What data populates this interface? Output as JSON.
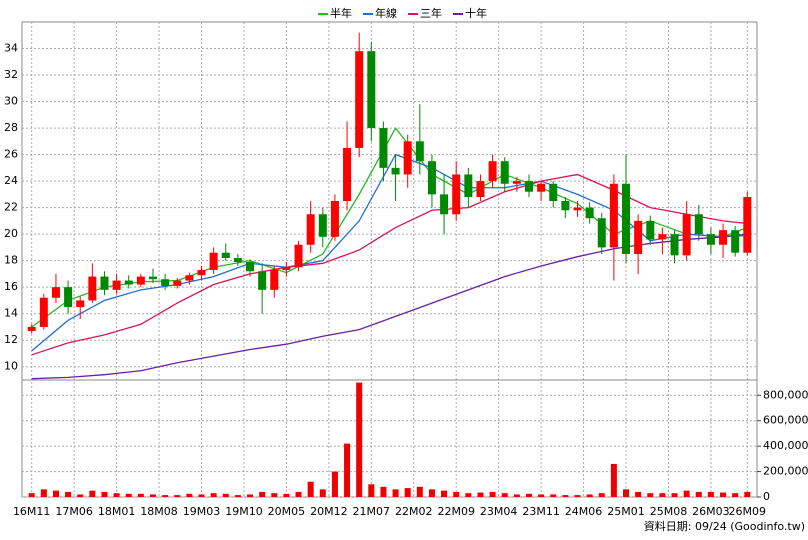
{
  "chart_data": {
    "type": "candlestick",
    "grid": true,
    "legend_position": "top",
    "xlim": [
      -0.8,
      59.8
    ],
    "xticks": [
      {
        "value": 0,
        "label": "16M11"
      },
      {
        "value": 3.5,
        "label": "17M06"
      },
      {
        "value": 7,
        "label": "18M01"
      },
      {
        "value": 10.5,
        "label": "18M08"
      },
      {
        "value": 14,
        "label": "19M03"
      },
      {
        "value": 17.5,
        "label": "19M10"
      },
      {
        "value": 21,
        "label": "20M05"
      },
      {
        "value": 24.5,
        "label": "20M12"
      },
      {
        "value": 28,
        "label": "21M07"
      },
      {
        "value": 31.5,
        "label": "22M02"
      },
      {
        "value": 35,
        "label": "22M09"
      },
      {
        "value": 38.5,
        "label": "23M04"
      },
      {
        "value": 42,
        "label": "23M11"
      },
      {
        "value": 45.5,
        "label": "24M06"
      },
      {
        "value": 49,
        "label": "25M01"
      },
      {
        "value": 52.5,
        "label": "25M08"
      },
      {
        "value": 56,
        "label": "26M03"
      },
      {
        "value": 59,
        "label": "26M09"
      }
    ],
    "ylim": [
      9,
      36
    ],
    "yticks": [
      10,
      12,
      14,
      16,
      18,
      20,
      22,
      24,
      26,
      28,
      30,
      32,
      34
    ],
    "up_color": "#ff0000",
    "down_color": "#008800",
    "ohlc": [
      [
        12.7,
        13.2,
        12.5,
        13.0
      ],
      [
        13.0,
        15.5,
        12.8,
        15.2
      ],
      [
        15.2,
        17.0,
        14.8,
        16.0
      ],
      [
        16.0,
        16.5,
        14.0,
        14.5
      ],
      [
        14.5,
        15.3,
        13.6,
        15.0
      ],
      [
        15.0,
        17.8,
        14.8,
        16.8
      ],
      [
        16.8,
        17.2,
        15.4,
        15.8
      ],
      [
        15.8,
        17.0,
        15.5,
        16.5
      ],
      [
        16.5,
        16.9,
        15.9,
        16.2
      ],
      [
        16.2,
        17.0,
        16.0,
        16.8
      ],
      [
        16.8,
        17.4,
        16.3,
        16.6
      ],
      [
        16.6,
        17.0,
        15.8,
        16.1
      ],
      [
        16.1,
        16.7,
        15.9,
        16.5
      ],
      [
        16.5,
        17.1,
        16.2,
        16.9
      ],
      [
        16.9,
        17.6,
        16.5,
        17.3
      ],
      [
        17.3,
        19.0,
        17.0,
        18.6
      ],
      [
        18.6,
        19.3,
        18.0,
        18.2
      ],
      [
        18.2,
        18.5,
        17.6,
        17.9
      ],
      [
        17.9,
        18.1,
        16.8,
        17.2
      ],
      [
        17.2,
        17.8,
        14.0,
        15.8
      ],
      [
        15.8,
        17.6,
        15.2,
        17.3
      ],
      [
        17.3,
        17.9,
        16.8,
        17.5
      ],
      [
        17.5,
        19.5,
        17.2,
        19.2
      ],
      [
        19.2,
        22.5,
        18.6,
        21.5
      ],
      [
        21.5,
        22.0,
        19.0,
        19.8
      ],
      [
        19.8,
        23.0,
        19.5,
        22.5
      ],
      [
        22.5,
        28.5,
        21.8,
        26.5
      ],
      [
        26.5,
        35.2,
        25.8,
        33.8
      ],
      [
        33.8,
        34.5,
        27.0,
        28.0
      ],
      [
        28.0,
        28.5,
        24.0,
        25.0
      ],
      [
        25.0,
        26.0,
        22.5,
        24.5
      ],
      [
        24.5,
        27.5,
        23.5,
        27.0
      ],
      [
        27.0,
        29.8,
        24.5,
        25.5
      ],
      [
        25.5,
        26.0,
        22.0,
        23.0
      ],
      [
        23.0,
        24.5,
        20.0,
        21.5
      ],
      [
        21.5,
        25.5,
        21.0,
        24.5
      ],
      [
        24.5,
        25.0,
        22.0,
        22.8
      ],
      [
        22.8,
        24.5,
        22.5,
        24.0
      ],
      [
        24.0,
        26.0,
        23.5,
        25.5
      ],
      [
        25.5,
        25.8,
        23.2,
        23.8
      ],
      [
        23.8,
        24.3,
        23.2,
        24.0
      ],
      [
        24.0,
        24.5,
        22.8,
        23.2
      ],
      [
        23.2,
        24.0,
        22.5,
        23.8
      ],
      [
        23.8,
        24.0,
        22.0,
        22.5
      ],
      [
        22.5,
        22.8,
        21.2,
        21.8
      ],
      [
        21.8,
        22.5,
        21.3,
        22.0
      ],
      [
        22.0,
        22.4,
        20.8,
        21.2
      ],
      [
        21.2,
        21.6,
        18.5,
        19.0
      ],
      [
        19.0,
        24.5,
        16.5,
        23.8
      ],
      [
        23.8,
        26.0,
        17.8,
        18.5
      ],
      [
        18.5,
        21.5,
        17.0,
        21.0
      ],
      [
        21.0,
        21.4,
        19.2,
        19.6
      ],
      [
        19.6,
        20.5,
        18.5,
        20.0
      ],
      [
        20.0,
        20.3,
        17.8,
        18.4
      ],
      [
        18.4,
        22.5,
        18.0,
        21.5
      ],
      [
        21.5,
        22.2,
        19.5,
        20.0
      ],
      [
        20.0,
        20.5,
        18.5,
        19.2
      ],
      [
        19.2,
        20.8,
        18.2,
        20.3
      ],
      [
        20.3,
        20.6,
        18.3,
        18.6
      ],
      [
        18.6,
        23.2,
        18.4,
        22.8
      ]
    ],
    "moving_averages": {
      "x": [
        0,
        3,
        6,
        9,
        12,
        15,
        18,
        21,
        24,
        27,
        30,
        33,
        36,
        39,
        42,
        45,
        48,
        51,
        54,
        57,
        59
      ],
      "series": [
        {
          "name": "半年",
          "color": "#22bb22",
          "values": [
            13.0,
            15.0,
            16.0,
            16.4,
            16.5,
            17.5,
            18.0,
            17.1,
            18.5,
            23.0,
            28.0,
            24.5,
            23.0,
            24.5,
            23.5,
            22.3,
            20.0,
            21.0,
            20.0,
            19.8,
            20.5
          ]
        },
        {
          "name": "年線",
          "color": "#1f6fd0",
          "values": [
            11.2,
            13.5,
            15.0,
            15.8,
            16.2,
            16.8,
            17.8,
            17.5,
            18.0,
            21.0,
            26.0,
            25.0,
            23.5,
            23.5,
            24.0,
            23.0,
            21.8,
            19.5,
            20.0,
            19.8,
            19.9
          ]
        },
        {
          "name": "三年",
          "color": "#dd1155",
          "values": [
            10.9,
            11.8,
            12.4,
            13.2,
            14.8,
            16.2,
            17.0,
            17.5,
            17.8,
            18.8,
            20.5,
            21.8,
            22.0,
            23.2,
            24.0,
            24.5,
            23.3,
            22.0,
            21.5,
            21.0,
            20.8
          ]
        },
        {
          "name": "十年",
          "color": "#6a1fa0",
          "values": [
            9.1,
            9.2,
            9.4,
            9.7,
            10.3,
            10.8,
            11.3,
            11.7,
            12.3,
            12.8,
            13.8,
            14.8,
            15.8,
            16.8,
            17.6,
            18.3,
            18.9,
            19.3,
            19.6,
            19.8,
            20.0
          ]
        }
      ]
    },
    "volume": {
      "color": "#ee0000",
      "ylim": [
        0,
        920000
      ],
      "yticks": [
        0,
        {
          "value": 200000,
          "label": "200,000"
        },
        {
          "value": 400000,
          "label": "400,000"
        },
        {
          "value": 600000,
          "label": "600,000"
        },
        {
          "value": 800000,
          "label": "800,000"
        }
      ],
      "values": [
        30000,
        60000,
        50000,
        40000,
        20000,
        50000,
        40000,
        30000,
        25000,
        25000,
        20000,
        15000,
        15000,
        25000,
        20000,
        30000,
        25000,
        15000,
        20000,
        40000,
        30000,
        25000,
        40000,
        120000,
        60000,
        200000,
        420000,
        900000,
        100000,
        80000,
        60000,
        70000,
        80000,
        60000,
        50000,
        40000,
        30000,
        35000,
        40000,
        30000,
        20000,
        25000,
        20000,
        20000,
        15000,
        15000,
        20000,
        30000,
        260000,
        60000,
        40000,
        30000,
        30000,
        30000,
        50000,
        40000,
        40000,
        35000,
        30000,
        40000
      ]
    },
    "footer": "資料日期: 09/24 (Goodinfo.tw)"
  }
}
